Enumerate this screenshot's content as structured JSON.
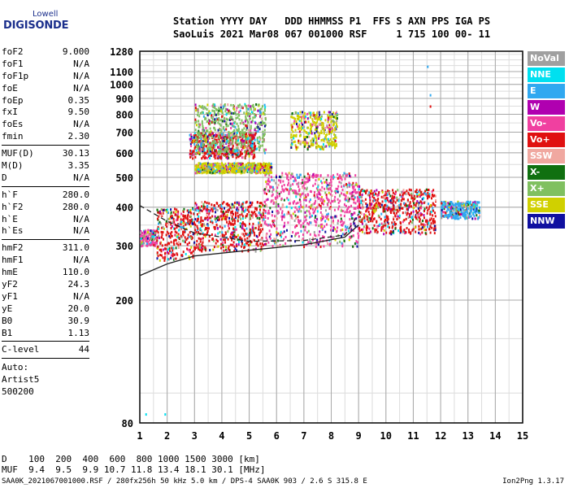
{
  "logo": {
    "line1": "Lowell",
    "line2": "DIGISONDE"
  },
  "header": {
    "line1": "Station YYYY DAY   DDD HHMMSS P1  FFS S AXN PPS IGA PS",
    "line2": "SaoLuis 2021 Mar08 067 001000 RSF     1 715 100 00- 11"
  },
  "params": {
    "group1": [
      {
        "name": "foF2",
        "value": "9.000"
      },
      {
        "name": "foF1",
        "value": "N/A"
      },
      {
        "name": "foF1p",
        "value": "N/A"
      },
      {
        "name": "foE",
        "value": "N/A"
      },
      {
        "name": "foEp",
        "value": "0.35"
      },
      {
        "name": "fxI",
        "value": "9.50"
      },
      {
        "name": "foEs",
        "value": "N/A"
      },
      {
        "name": "fmin",
        "value": "2.30"
      }
    ],
    "group2": [
      {
        "name": "MUF(D)",
        "value": "30.13"
      },
      {
        "name": "M(D)",
        "value": "3.35"
      },
      {
        "name": "D",
        "value": "N/A"
      }
    ],
    "group3": [
      {
        "name": "h`F",
        "value": "280.0"
      },
      {
        "name": "h`F2",
        "value": "280.0"
      },
      {
        "name": "h`E",
        "value": "N/A"
      },
      {
        "name": "h`Es",
        "value": "N/A"
      }
    ],
    "group4": [
      {
        "name": "hmF2",
        "value": "311.0"
      },
      {
        "name": "hmF1",
        "value": "N/A"
      },
      {
        "name": "hmE",
        "value": "110.0"
      },
      {
        "name": "yF2",
        "value": "24.3"
      },
      {
        "name": "yF1",
        "value": "N/A"
      },
      {
        "name": "yE",
        "value": "20.0"
      },
      {
        "name": "B0",
        "value": "30.9"
      },
      {
        "name": "B1",
        "value": "1.13"
      }
    ],
    "clevel": {
      "name": "C-level",
      "value": "44"
    },
    "auto": [
      "Auto:",
      "Artist5",
      "500200"
    ]
  },
  "legend": [
    {
      "label": "NoVal",
      "color": "#a0a0a0"
    },
    {
      "label": "NNE",
      "color": "#00e0f0"
    },
    {
      "label": "E",
      "color": "#30a8f0"
    },
    {
      "label": "W",
      "color": "#b000b0"
    },
    {
      "label": "Vo-",
      "color": "#f040a0"
    },
    {
      "label": "Vo+",
      "color": "#e01010"
    },
    {
      "label": "SSW",
      "color": "#f0a8a0"
    },
    {
      "label": "X-",
      "color": "#107010"
    },
    {
      "label": "X+",
      "color": "#80c060"
    },
    {
      "label": "SSE",
      "color": "#d0d000"
    },
    {
      "label": "NNW",
      "color": "#1010a0"
    }
  ],
  "distance_table": {
    "line1": "D    100  200  400  600  800 1000 1500 3000 [km]",
    "line2": "MUF  9.4  9.5  9.9 10.7 11.8 13.4 18.1 30.1 [MHz]"
  },
  "footer": {
    "left": "SAA0K_2021067001000.RSF / 280fx256h 50 kHz 5.0 km / DPS-4 SAA0K 903 / 2.6 S 315.8 E",
    "right": "Ion2Png 1.3.17"
  },
  "chart_data": {
    "type": "scatter",
    "x_ticks": [
      1,
      2,
      3,
      4,
      5,
      6,
      7,
      8,
      9,
      10,
      11,
      12,
      13,
      14,
      15
    ],
    "y_ticks": [
      80,
      200,
      300,
      400,
      500,
      600,
      700,
      800,
      900,
      1000,
      1100,
      1280
    ],
    "xlim": [
      1,
      15
    ],
    "ylim": [
      80,
      1280
    ],
    "y_scale": "log",
    "grid": true,
    "clusters": [
      {
        "x": [
          1.0,
          1.6
        ],
        "y": [
          300,
          340
        ],
        "series": "Vo-"
      },
      {
        "x": [
          1.6,
          3.0
        ],
        "y": [
          270,
          400
        ],
        "series": "Vo+"
      },
      {
        "x": [
          3.0,
          5.5
        ],
        "y": [
          290,
          420
        ],
        "series": "Vo+"
      },
      {
        "x": [
          5.5,
          9.0
        ],
        "y": [
          300,
          520
        ],
        "series": "Vo-"
      },
      {
        "x": [
          9.0,
          11.8
        ],
        "y": [
          330,
          460
        ],
        "series": "Vo+"
      },
      {
        "x": [
          2.8,
          5.2
        ],
        "y": [
          580,
          700
        ],
        "series": "Vo+"
      },
      {
        "x": [
          3.0,
          5.8
        ],
        "y": [
          520,
          560
        ],
        "series": "SSE"
      },
      {
        "x": [
          3.0,
          5.6
        ],
        "y": [
          600,
          870
        ],
        "series": "X+"
      },
      {
        "x": [
          6.5,
          8.2
        ],
        "y": [
          620,
          820
        ],
        "series": "SSE"
      },
      {
        "x": [
          12.0,
          13.4
        ],
        "y": [
          370,
          420
        ],
        "series": "E"
      }
    ],
    "isolated_points": [
      {
        "x": 1.2,
        "y": 86,
        "series": "NNE"
      },
      {
        "x": 1.9,
        "y": 86,
        "series": "NNE"
      },
      {
        "x": 11.5,
        "y": 1150,
        "series": "E"
      },
      {
        "x": 11.6,
        "y": 930,
        "series": "E"
      },
      {
        "x": 11.6,
        "y": 855,
        "series": "Vo+"
      }
    ],
    "trace_lower": {
      "x": [
        1.0,
        2.0,
        3.0,
        5.0,
        7.0,
        8.5,
        9.0
      ],
      "y": [
        240,
        262,
        278,
        290,
        302,
        320,
        350
      ]
    },
    "trace_upper_dashed": {
      "x": [
        1.0,
        2.0,
        3.0,
        5.0,
        7.0,
        8.5,
        9.0
      ],
      "y": [
        405,
        360,
        330,
        310,
        312,
        325,
        380
      ]
    }
  }
}
